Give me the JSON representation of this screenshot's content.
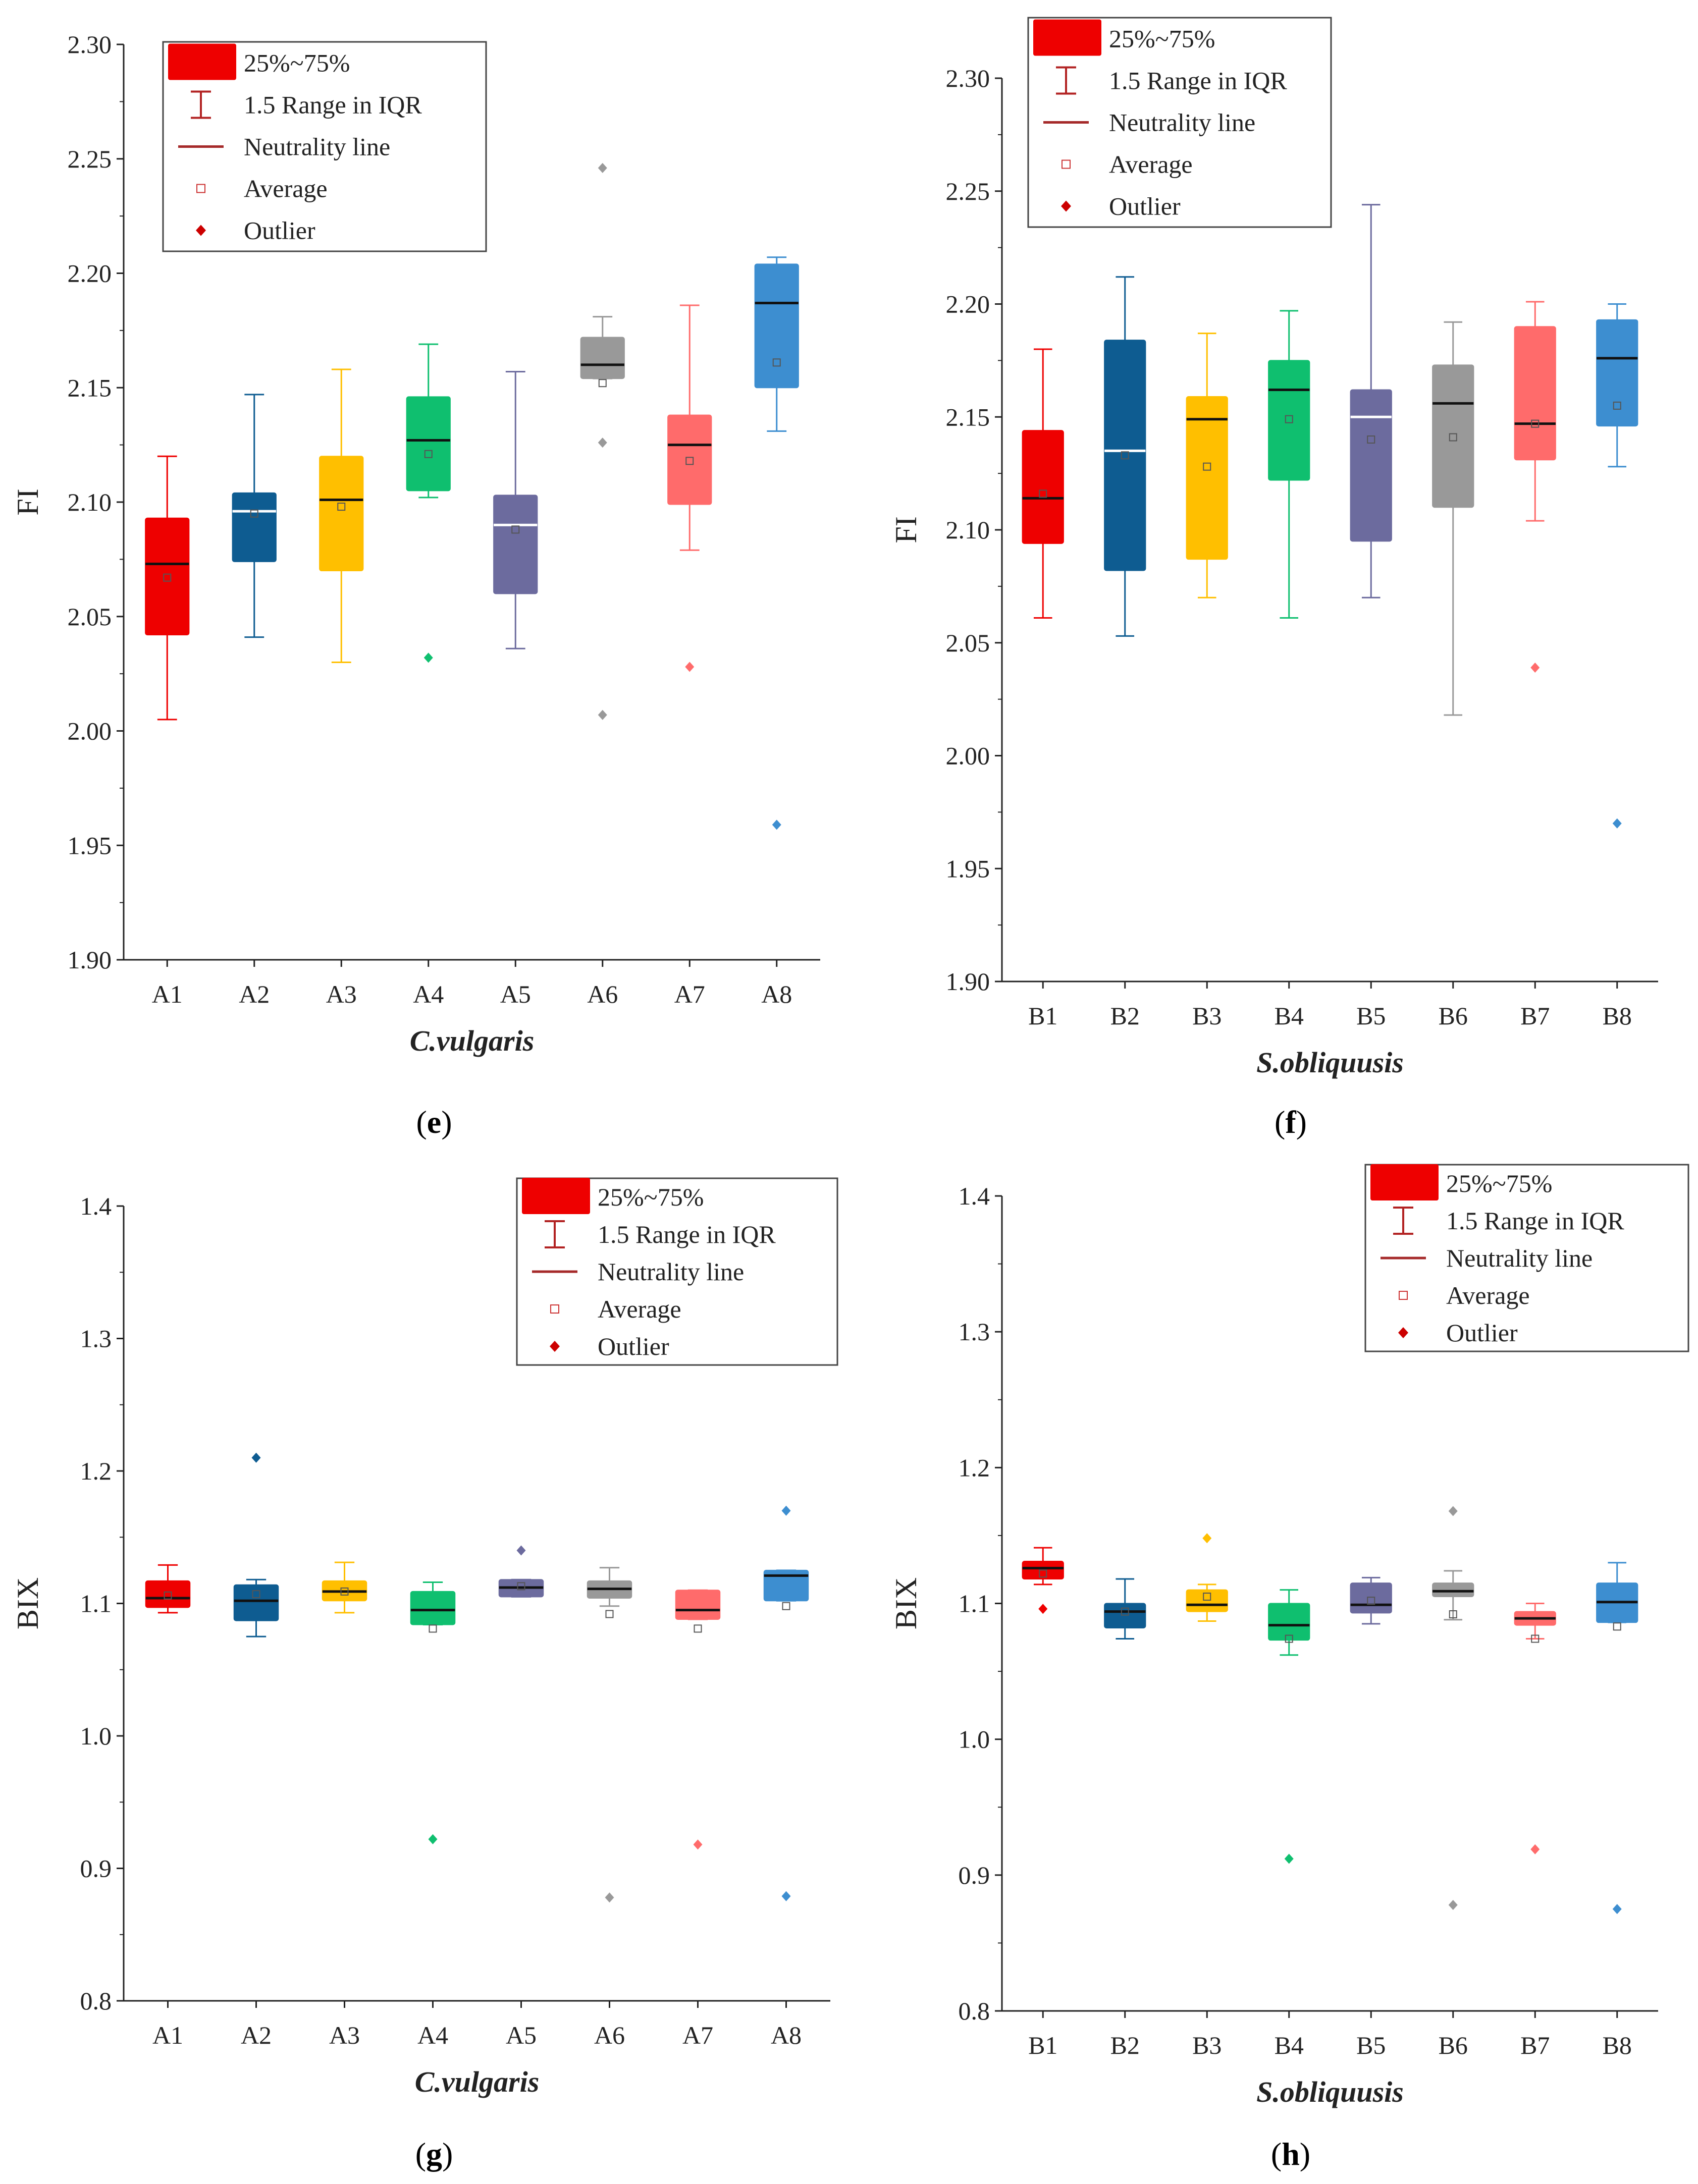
{
  "chart_data": [
    {
      "panel": "e",
      "type": "boxplot",
      "ylabel": "FI",
      "xlabel": "C.vulgaris",
      "ylim": [
        1.9,
        2.3
      ],
      "yticks": [
        "1.90",
        "1.95",
        "2.00",
        "2.05",
        "2.10",
        "2.15",
        "2.20",
        "2.25",
        "2.30"
      ],
      "legend": [
        "25%~75%",
        "1.5 Range in IQR",
        "Neutrality line",
        "Average",
        "Outlier"
      ],
      "categories": [
        "A1",
        "A2",
        "A3",
        "A4",
        "A5",
        "A6",
        "A7",
        "A8"
      ],
      "series": [
        {
          "name": "A1",
          "color": "#ee0000",
          "whisker_low": 2.005,
          "q1": 2.042,
          "median": 2.073,
          "q3": 2.093,
          "whisker_high": 2.12,
          "mean": 2.067,
          "outliers": []
        },
        {
          "name": "A2",
          "color": "#0e5c91",
          "whisker_low": 2.041,
          "q1": 2.074,
          "median": 2.096,
          "q3": 2.104,
          "whisker_high": 2.147,
          "mean": 2.095,
          "outliers": []
        },
        {
          "name": "A3",
          "color": "#ffbf00",
          "whisker_low": 2.03,
          "q1": 2.07,
          "median": 2.101,
          "q3": 2.12,
          "whisker_high": 2.158,
          "mean": 2.098,
          "outliers": []
        },
        {
          "name": "A4",
          "color": "#0fbf6f",
          "whisker_low": 2.102,
          "q1": 2.105,
          "median": 2.127,
          "q3": 2.146,
          "whisker_high": 2.169,
          "mean": 2.121,
          "outliers": [
            2.032
          ]
        },
        {
          "name": "A5",
          "color": "#6c6b9e",
          "whisker_low": 2.036,
          "q1": 2.06,
          "median": 2.09,
          "q3": 2.103,
          "whisker_high": 2.157,
          "mean": 2.088,
          "outliers": []
        },
        {
          "name": "A6",
          "color": "#999999",
          "whisker_low": 2.154,
          "q1": 2.154,
          "median": 2.16,
          "q3": 2.172,
          "whisker_high": 2.181,
          "mean": 2.152,
          "outliers": [
            2.246,
            2.126,
            2.007
          ]
        },
        {
          "name": "A7",
          "color": "#ff6b6b",
          "whisker_low": 2.079,
          "q1": 2.099,
          "median": 2.125,
          "q3": 2.138,
          "whisker_high": 2.186,
          "mean": 2.118,
          "outliers": [
            2.028
          ]
        },
        {
          "name": "A8",
          "color": "#3d8ed0",
          "whisker_low": 2.131,
          "q1": 2.15,
          "median": 2.187,
          "q3": 2.204,
          "whisker_high": 2.207,
          "mean": 2.161,
          "outliers": [
            1.959
          ]
        }
      ]
    },
    {
      "panel": "f",
      "type": "boxplot",
      "ylabel": "FI",
      "xlabel": "S.obliquusis",
      "ylim": [
        1.9,
        2.3
      ],
      "yticks": [
        "1.90",
        "1.95",
        "2.00",
        "2.05",
        "2.10",
        "2.15",
        "2.20",
        "2.25",
        "2.30"
      ],
      "legend": [
        "25%~75%",
        "1.5 Range in IQR",
        "Neutrality line",
        "Average",
        "Outlier"
      ],
      "categories": [
        "B1",
        "B2",
        "B3",
        "B4",
        "B5",
        "B6",
        "B7",
        "B8"
      ],
      "series": [
        {
          "name": "B1",
          "color": "#ee0000",
          "whisker_low": 2.061,
          "q1": 2.094,
          "median": 2.114,
          "q3": 2.144,
          "whisker_high": 2.18,
          "mean": 2.116,
          "outliers": []
        },
        {
          "name": "B2",
          "color": "#0e5c91",
          "whisker_low": 2.053,
          "q1": 2.082,
          "median": 2.135,
          "q3": 2.184,
          "whisker_high": 2.212,
          "mean": 2.133,
          "outliers": []
        },
        {
          "name": "B3",
          "color": "#ffbf00",
          "whisker_low": 2.07,
          "q1": 2.087,
          "median": 2.149,
          "q3": 2.159,
          "whisker_high": 2.187,
          "mean": 2.128,
          "outliers": []
        },
        {
          "name": "B4",
          "color": "#0fbf6f",
          "whisker_low": 2.061,
          "q1": 2.122,
          "median": 2.162,
          "q3": 2.175,
          "whisker_high": 2.197,
          "mean": 2.149,
          "outliers": []
        },
        {
          "name": "B5",
          "color": "#6c6b9e",
          "whisker_low": 2.07,
          "q1": 2.095,
          "median": 2.15,
          "q3": 2.162,
          "whisker_high": 2.244,
          "mean": 2.14,
          "outliers": []
        },
        {
          "name": "B6",
          "color": "#999999",
          "whisker_low": 2.018,
          "q1": 2.11,
          "median": 2.156,
          "q3": 2.173,
          "whisker_high": 2.192,
          "mean": 2.141,
          "outliers": []
        },
        {
          "name": "B7",
          "color": "#ff6b6b",
          "whisker_low": 2.104,
          "q1": 2.131,
          "median": 2.147,
          "q3": 2.19,
          "whisker_high": 2.201,
          "mean": 2.147,
          "outliers": [
            2.039
          ]
        },
        {
          "name": "B8",
          "color": "#3d8ed0",
          "whisker_low": 2.128,
          "q1": 2.146,
          "median": 2.176,
          "q3": 2.193,
          "whisker_high": 2.2,
          "mean": 2.155,
          "outliers": [
            1.97
          ]
        }
      ]
    },
    {
      "panel": "g",
      "type": "boxplot",
      "ylabel": "BIX",
      "xlabel": "C.vulgaris",
      "ylim": [
        0.8,
        1.4
      ],
      "yticks": [
        "0.8",
        "0.9",
        "1.0",
        "1.1",
        "1.2",
        "1.3",
        "1.4"
      ],
      "legend": [
        "25%~75%",
        "1.5 Range in IQR",
        "Neutrality line",
        "Average",
        "Outlier"
      ],
      "categories": [
        "A1",
        "A2",
        "A3",
        "A4",
        "A5",
        "A6",
        "A7",
        "A8"
      ],
      "series": [
        {
          "name": "A1",
          "color": "#ee0000",
          "whisker_low": 1.093,
          "q1": 1.097,
          "median": 1.104,
          "q3": 1.117,
          "whisker_high": 1.129,
          "mean": 1.106,
          "outliers": []
        },
        {
          "name": "A2",
          "color": "#0e5c91",
          "whisker_low": 1.075,
          "q1": 1.087,
          "median": 1.102,
          "q3": 1.114,
          "whisker_high": 1.118,
          "mean": 1.107,
          "outliers": [
            1.21
          ]
        },
        {
          "name": "A3",
          "color": "#ffbf00",
          "whisker_low": 1.093,
          "q1": 1.102,
          "median": 1.109,
          "q3": 1.117,
          "whisker_high": 1.131,
          "mean": 1.109,
          "outliers": []
        },
        {
          "name": "A4",
          "color": "#0fbf6f",
          "whisker_low": 1.084,
          "q1": 1.084,
          "median": 1.095,
          "q3": 1.109,
          "whisker_high": 1.116,
          "mean": 1.081,
          "outliers": [
            0.922
          ]
        },
        {
          "name": "A5",
          "color": "#6c6b9e",
          "whisker_low": 1.105,
          "q1": 1.105,
          "median": 1.112,
          "q3": 1.118,
          "whisker_high": 1.118,
          "mean": 1.113,
          "outliers": [
            1.14
          ]
        },
        {
          "name": "A6",
          "color": "#999999",
          "whisker_low": 1.098,
          "q1": 1.104,
          "median": 1.111,
          "q3": 1.117,
          "whisker_high": 1.127,
          "mean": 1.092,
          "outliers": [
            0.878
          ]
        },
        {
          "name": "A7",
          "color": "#ff6b6b",
          "whisker_low": 1.088,
          "q1": 1.088,
          "median": 1.095,
          "q3": 1.11,
          "whisker_high": 1.11,
          "mean": 1.081,
          "outliers": [
            0.918
          ]
        },
        {
          "name": "A8",
          "color": "#3d8ed0",
          "whisker_low": 1.102,
          "q1": 1.102,
          "median": 1.121,
          "q3": 1.125,
          "whisker_high": 1.125,
          "mean": 1.098,
          "outliers": [
            1.17,
            0.879
          ]
        }
      ]
    },
    {
      "panel": "h",
      "type": "boxplot",
      "ylabel": "BIX",
      "xlabel": "S.obliquusis",
      "ylim": [
        0.8,
        1.4
      ],
      "yticks": [
        "0.8",
        "0.9",
        "1.0",
        "1.1",
        "1.2",
        "1.3",
        "1.4"
      ],
      "legend": [
        "25%~75%",
        "1.5 Range in IQR",
        "Neutrality line",
        "Average",
        "Outlier"
      ],
      "categories": [
        "B1",
        "B2",
        "B3",
        "B4",
        "B5",
        "B6",
        "B7",
        "B8"
      ],
      "series": [
        {
          "name": "B1",
          "color": "#ee0000",
          "whisker_low": 1.114,
          "q1": 1.118,
          "median": 1.126,
          "q3": 1.131,
          "whisker_high": 1.141,
          "mean": 1.122,
          "outliers": [
            1.096
          ]
        },
        {
          "name": "B2",
          "color": "#0e5c91",
          "whisker_low": 1.074,
          "q1": 1.082,
          "median": 1.094,
          "q3": 1.1,
          "whisker_high": 1.118,
          "mean": 1.094,
          "outliers": []
        },
        {
          "name": "B3",
          "color": "#ffbf00",
          "whisker_low": 1.087,
          "q1": 1.094,
          "median": 1.099,
          "q3": 1.11,
          "whisker_high": 1.114,
          "mean": 1.105,
          "outliers": [
            1.148
          ]
        },
        {
          "name": "B4",
          "color": "#0fbf6f",
          "whisker_low": 1.062,
          "q1": 1.073,
          "median": 1.084,
          "q3": 1.1,
          "whisker_high": 1.11,
          "mean": 1.074,
          "outliers": [
            0.912
          ]
        },
        {
          "name": "B5",
          "color": "#6c6b9e",
          "whisker_low": 1.085,
          "q1": 1.093,
          "median": 1.099,
          "q3": 1.115,
          "whisker_high": 1.119,
          "mean": 1.102,
          "outliers": []
        },
        {
          "name": "B6",
          "color": "#999999",
          "whisker_low": 1.088,
          "q1": 1.105,
          "median": 1.109,
          "q3": 1.115,
          "whisker_high": 1.124,
          "mean": 1.092,
          "outliers": [
            1.168,
            0.878
          ]
        },
        {
          "name": "B7",
          "color": "#ff6b6b",
          "whisker_low": 1.074,
          "q1": 1.084,
          "median": 1.089,
          "q3": 1.094,
          "whisker_high": 1.1,
          "mean": 1.074,
          "outliers": [
            0.919
          ]
        },
        {
          "name": "B8",
          "color": "#3d8ed0",
          "whisker_low": 1.086,
          "q1": 1.086,
          "median": 1.101,
          "q3": 1.115,
          "whisker_high": 1.13,
          "mean": 1.083,
          "outliers": [
            0.875
          ]
        }
      ]
    }
  ],
  "legend_colors": {
    "box": "#ee0000",
    "whisker": "#b22222",
    "neutrality": "#a52a2a",
    "average": "#cc3333",
    "outlier": "#cc0000"
  },
  "captions": [
    "e",
    "f",
    "g",
    "h"
  ]
}
